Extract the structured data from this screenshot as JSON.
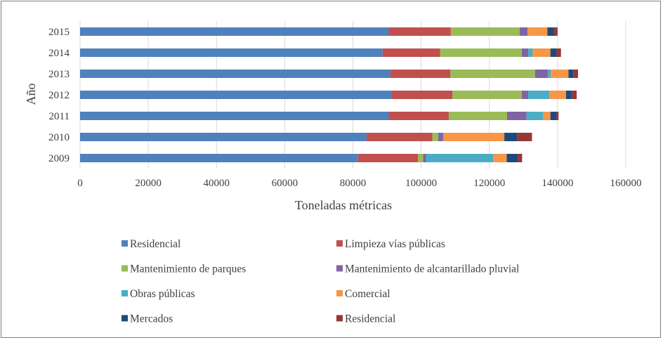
{
  "chart_data": {
    "type": "bar",
    "orientation": "horizontal",
    "stacked": true,
    "title": "",
    "xlabel": "Toneladas métricas",
    "ylabel": "Año",
    "xlim": [
      0,
      160000
    ],
    "x_ticks": [
      0,
      20000,
      40000,
      60000,
      80000,
      100000,
      120000,
      140000,
      160000
    ],
    "x_tick_labels": [
      "0",
      "20000",
      "40000",
      "60000",
      "80000",
      "100000",
      "120000",
      "140000",
      "160000"
    ],
    "grid": "vertical",
    "legend_position": "bottom",
    "categories": [
      "2015",
      "2014",
      "2013",
      "2012",
      "2011",
      "2010",
      "2009"
    ],
    "series": [
      {
        "name": "Residencial",
        "color": "#4f81bd",
        "values": [
          90500,
          88700,
          91000,
          91300,
          90500,
          84000,
          81500
        ]
      },
      {
        "name": "Limpieza vías públicas",
        "color": "#c0504d",
        "values": [
          18200,
          16900,
          17600,
          17900,
          17600,
          19300,
          17600
        ]
      },
      {
        "name": "Mantenimiento de parques",
        "color": "#9bbb59",
        "values": [
          20200,
          23900,
          24800,
          20300,
          17100,
          1700,
          1500
        ]
      },
      {
        "name": "Mantenimiento de alcantarillado pluvial",
        "color": "#8064a2",
        "values": [
          2300,
          1900,
          3800,
          1900,
          5700,
          1400,
          900
        ]
      },
      {
        "name": "Obras públicas",
        "color": "#4bacc6",
        "values": [
          0,
          1300,
          800,
          6200,
          4800,
          300,
          19600
        ]
      },
      {
        "name": "Comercial",
        "color": "#f79646",
        "values": [
          5800,
          5200,
          5200,
          4900,
          2200,
          17700,
          4000
        ]
      },
      {
        "name": "Mercados",
        "color": "#1f497d",
        "values": [
          1900,
          1800,
          1500,
          1600,
          1800,
          3700,
          3200
        ]
      },
      {
        "name": "Residencial",
        "color": "#953735",
        "values": [
          1100,
          1300,
          1300,
          1500,
          600,
          4400,
          1300
        ]
      }
    ]
  }
}
